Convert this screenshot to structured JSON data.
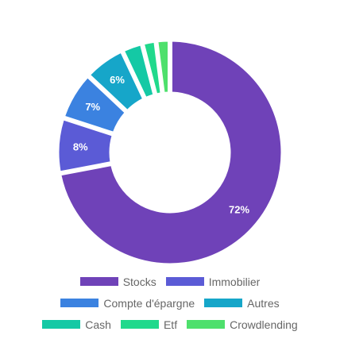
{
  "chart_data": {
    "type": "pie",
    "variant": "donut",
    "title": "",
    "slices": [
      {
        "name": "Stocks",
        "value": 72,
        "label": "72%",
        "color": "#6f42b8"
      },
      {
        "name": "Immobilier",
        "value": 8,
        "label": "8%",
        "color": "#5b5bd6"
      },
      {
        "name": "Compte d'épargne",
        "value": 7,
        "label": "7%",
        "color": "#3b82e0"
      },
      {
        "name": "Autres",
        "value": 6,
        "label": "6%",
        "color": "#16a6c9"
      },
      {
        "name": "Cash",
        "value": 3,
        "label": "",
        "color": "#14c9a5"
      },
      {
        "name": "Etf",
        "value": 2,
        "label": "",
        "color": "#20d98c"
      },
      {
        "name": "Crowdlending",
        "value": 2,
        "label": "",
        "color": "#4ee06c"
      }
    ],
    "legend_position": "bottom",
    "legend": [
      [
        "Stocks",
        "Immobilier"
      ],
      [
        "Compte d'épargne",
        "Autres"
      ],
      [
        "Cash",
        "Etf",
        "Crowdlending"
      ]
    ]
  }
}
